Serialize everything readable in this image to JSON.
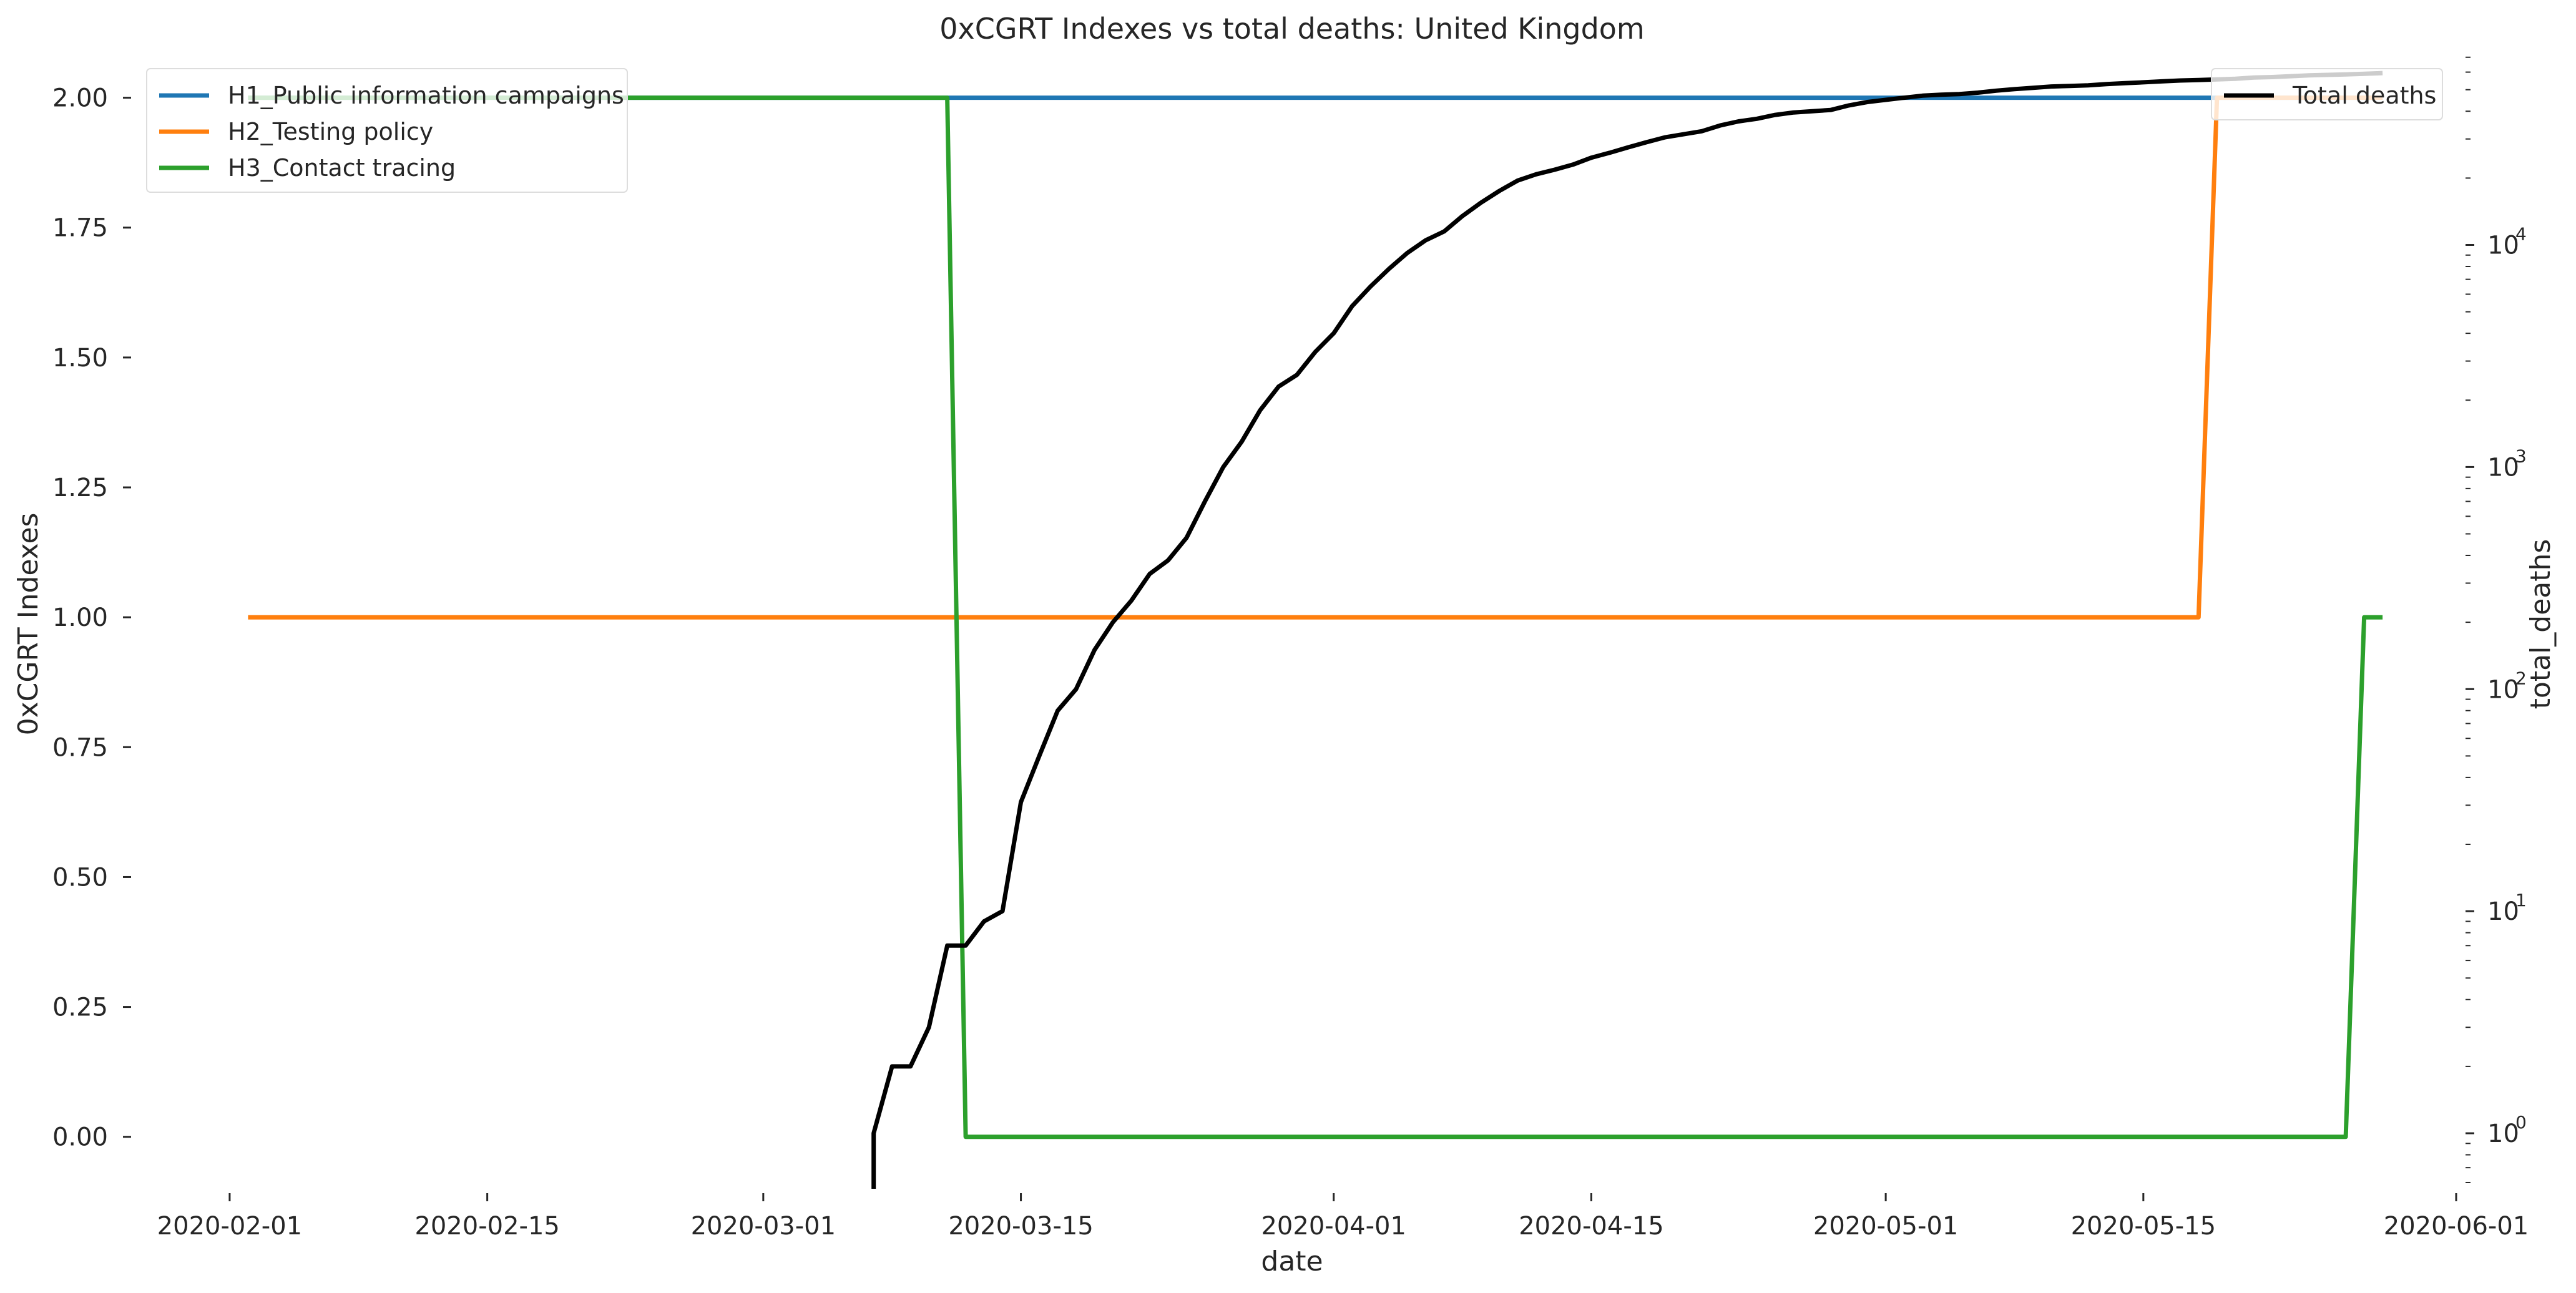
{
  "chart_data": {
    "type": "line",
    "title": "0xCGRT Indexes vs total deaths:  United Kingdom",
    "xlabel": "date",
    "ylabel_left": "0xCGRT Indexes",
    "ylabel_right": "total_deaths",
    "y_left_ticks": [
      "0.00",
      "0.25",
      "0.50",
      "0.75",
      "1.00",
      "1.25",
      "1.50",
      "1.75",
      "2.00"
    ],
    "x_ticks": [
      "2020-02-01",
      "2020-02-15",
      "2020-03-01",
      "2020-03-15",
      "2020-04-01",
      "2020-04-15",
      "2020-05-01",
      "2020-05-15",
      "2020-06-01"
    ],
    "y_right_scale": "log",
    "y_right_tick_bases": [
      "10",
      "10",
      "10",
      "10",
      "10"
    ],
    "y_right_tick_exponents": [
      "0",
      "1",
      "2",
      "3",
      "4"
    ],
    "ylim_left": [
      -0.1,
      2.08
    ],
    "ylim_right_log10": [
      -0.25,
      4.85
    ],
    "xlim": [
      "2020-01-28",
      "2020-06-01"
    ],
    "grid": false,
    "legend_left_placement": "top-left",
    "legend_right_placement": "top-right",
    "series": [
      {
        "name": "H1_Public information campaigns",
        "axis": "left",
        "color": "#1f77b4",
        "points": [
          [
            "2020-02-02",
            2
          ],
          [
            "2020-05-28",
            2
          ]
        ]
      },
      {
        "name": "H2_Testing policy",
        "axis": "left",
        "color": "#ff7f0e",
        "points": [
          [
            "2020-02-02",
            1
          ],
          [
            "2020-05-18",
            1
          ],
          [
            "2020-05-19",
            2
          ],
          [
            "2020-05-28",
            2
          ]
        ]
      },
      {
        "name": "H3_Contact tracing",
        "axis": "left",
        "color": "#2ca02c",
        "points": [
          [
            "2020-02-02",
            2
          ],
          [
            "2020-03-11",
            2
          ],
          [
            "2020-03-12",
            0
          ],
          [
            "2020-05-26",
            0
          ],
          [
            "2020-05-27",
            1
          ],
          [
            "2020-05-28",
            1
          ]
        ]
      },
      {
        "name": "Total deaths",
        "axis": "right",
        "color": "#000000",
        "points": [
          [
            "2020-03-07",
            0.55
          ],
          [
            "2020-03-07",
            1
          ],
          [
            "2020-03-08",
            2
          ],
          [
            "2020-03-09",
            2
          ],
          [
            "2020-03-10",
            3
          ],
          [
            "2020-03-11",
            7
          ],
          [
            "2020-03-12",
            7
          ],
          [
            "2020-03-13",
            9
          ],
          [
            "2020-03-14",
            10
          ],
          [
            "2020-03-15",
            31
          ],
          [
            "2020-03-16",
            50
          ],
          [
            "2020-03-17",
            80
          ],
          [
            "2020-03-18",
            100
          ],
          [
            "2020-03-19",
            150
          ],
          [
            "2020-03-20",
            200
          ],
          [
            "2020-03-21",
            250
          ],
          [
            "2020-03-22",
            330
          ],
          [
            "2020-03-23",
            380
          ],
          [
            "2020-03-24",
            480
          ],
          [
            "2020-03-25",
            700
          ],
          [
            "2020-03-26",
            1000
          ],
          [
            "2020-03-27",
            1300
          ],
          [
            "2020-03-28",
            1800
          ],
          [
            "2020-03-29",
            2300
          ],
          [
            "2020-03-30",
            2600
          ],
          [
            "2020-03-31",
            3300
          ],
          [
            "2020-04-01",
            4000
          ],
          [
            "2020-04-02",
            5300
          ],
          [
            "2020-04-03",
            6500
          ],
          [
            "2020-04-04",
            7800
          ],
          [
            "2020-04-05",
            9200
          ],
          [
            "2020-04-06",
            10500
          ],
          [
            "2020-04-07",
            11500
          ],
          [
            "2020-04-08",
            13500
          ],
          [
            "2020-04-09",
            15500
          ],
          [
            "2020-04-10",
            17500
          ],
          [
            "2020-04-11",
            19500
          ],
          [
            "2020-04-12",
            20800
          ],
          [
            "2020-04-13",
            21800
          ],
          [
            "2020-04-14",
            23000
          ],
          [
            "2020-04-15",
            24700
          ],
          [
            "2020-04-16",
            26000
          ],
          [
            "2020-04-17",
            27500
          ],
          [
            "2020-04-18",
            29000
          ],
          [
            "2020-04-19",
            30500
          ],
          [
            "2020-04-20",
            31500
          ],
          [
            "2020-04-21",
            32500
          ],
          [
            "2020-04-22",
            34500
          ],
          [
            "2020-04-23",
            36000
          ],
          [
            "2020-04-24",
            37000
          ],
          [
            "2020-04-25",
            38500
          ],
          [
            "2020-04-26",
            39500
          ],
          [
            "2020-04-27",
            40000
          ],
          [
            "2020-04-28",
            40500
          ],
          [
            "2020-04-29",
            42500
          ],
          [
            "2020-04-30",
            44000
          ],
          [
            "2020-05-01",
            45000
          ],
          [
            "2020-05-02",
            46000
          ],
          [
            "2020-05-03",
            47000
          ],
          [
            "2020-05-04",
            47500
          ],
          [
            "2020-05-05",
            47800
          ],
          [
            "2020-05-06",
            48500
          ],
          [
            "2020-05-07",
            49500
          ],
          [
            "2020-05-08",
            50300
          ],
          [
            "2020-05-09",
            51000
          ],
          [
            "2020-05-10",
            51700
          ],
          [
            "2020-05-11",
            52000
          ],
          [
            "2020-05-12",
            52300
          ],
          [
            "2020-05-13",
            53000
          ],
          [
            "2020-05-14",
            53500
          ],
          [
            "2020-05-15",
            54000
          ],
          [
            "2020-05-16",
            54500
          ],
          [
            "2020-05-17",
            55000
          ],
          [
            "2020-05-18",
            55300
          ],
          [
            "2020-05-19",
            55600
          ],
          [
            "2020-05-20",
            56000
          ],
          [
            "2020-05-21",
            56700
          ],
          [
            "2020-05-22",
            57000
          ],
          [
            "2020-05-23",
            57500
          ],
          [
            "2020-05-24",
            58000
          ],
          [
            "2020-05-25",
            58300
          ],
          [
            "2020-05-26",
            58600
          ],
          [
            "2020-05-27",
            59000
          ],
          [
            "2020-05-28",
            59400
          ]
        ]
      }
    ]
  }
}
